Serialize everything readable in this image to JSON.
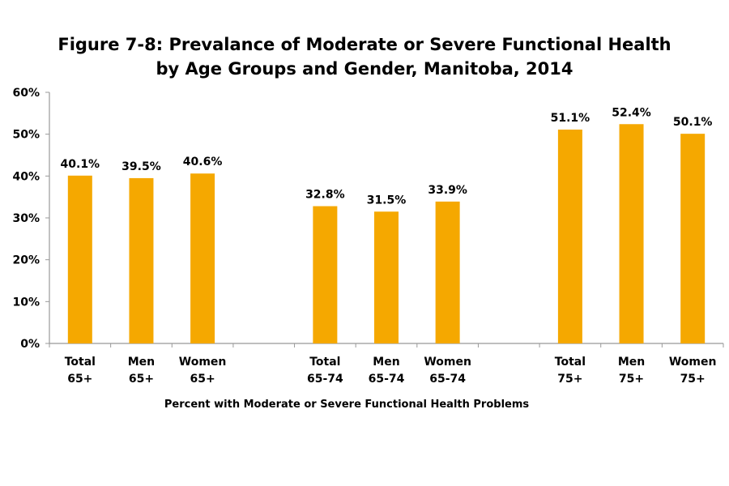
{
  "chart_data": {
    "type": "bar",
    "title_line1": "Figure 7-8: Prevalance of Moderate or Severe Functional Health",
    "title_line2": "by Age Groups and Gender, Manitoba, 2014",
    "xlabel": "Percent with Moderate or Severe Functional Health Problems",
    "ylabel": "",
    "ylim": [
      0,
      60
    ],
    "yticks": [
      "0%",
      "10%",
      "20%",
      "30%",
      "40%",
      "50%",
      "60%"
    ],
    "categories": [
      [
        "Total",
        "65+"
      ],
      [
        "Men",
        "65+"
      ],
      [
        "Women",
        "65+"
      ],
      [
        "Total",
        "65-74"
      ],
      [
        "Men",
        "65-74"
      ],
      [
        "Women",
        "65-74"
      ],
      [
        "Total",
        "75+"
      ],
      [
        "Men",
        "75+"
      ],
      [
        "Women",
        "75+"
      ]
    ],
    "values": [
      40.1,
      39.5,
      40.6,
      32.8,
      31.5,
      33.9,
      51.1,
      52.4,
      50.1
    ],
    "data_labels": [
      "40.1%",
      "39.5%",
      "40.6%",
      "32.8%",
      "31.5%",
      "33.9%",
      "51.1%",
      "52.4%",
      "50.1%"
    ],
    "bar_color": "#F5A800",
    "grid": false,
    "legend": "none"
  }
}
